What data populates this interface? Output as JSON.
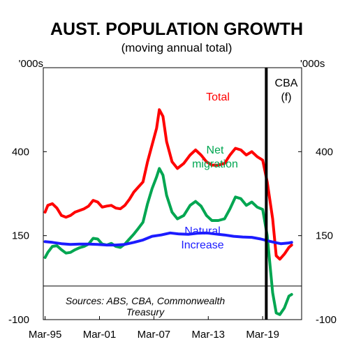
{
  "chart_data": {
    "type": "line",
    "title": "AUST. POPULATION GROWTH",
    "subtitle": "(moving annual total)",
    "y_unit_left": "'000s",
    "y_unit_right": "'000s",
    "ylim": [
      -100,
      650
    ],
    "yticks": [
      -100,
      150,
      400
    ],
    "xlim": [
      1995.0,
      2023.5
    ],
    "x_tick_labels": [
      "Mar-95",
      "Mar-01",
      "Mar-07",
      "Mar-13",
      "Mar-19"
    ],
    "x_tick_values": [
      1995.2,
      2001.2,
      2007.2,
      2013.2,
      2019.2
    ],
    "forecast_divider_x": 2019.6,
    "forecast_label": [
      "CBA",
      "(f)"
    ],
    "zero_line": 0,
    "grid": false,
    "note": [
      "Sources: ABS, CBA, Commonwealth",
      "Treasury"
    ],
    "series": [
      {
        "name": "Total",
        "label_lines": [
          "Total"
        ],
        "color": "#ff0000",
        "points": [
          [
            1995.2,
            220
          ],
          [
            1995.5,
            240
          ],
          [
            1996.0,
            245
          ],
          [
            1996.5,
            232
          ],
          [
            1997.0,
            210
          ],
          [
            1997.5,
            205
          ],
          [
            1998.0,
            210
          ],
          [
            1998.5,
            220
          ],
          [
            1999.0,
            225
          ],
          [
            1999.5,
            230
          ],
          [
            2000.0,
            238
          ],
          [
            2000.5,
            255
          ],
          [
            2001.0,
            250
          ],
          [
            2001.5,
            235
          ],
          [
            2002.0,
            238
          ],
          [
            2002.5,
            240
          ],
          [
            2003.0,
            232
          ],
          [
            2003.5,
            230
          ],
          [
            2004.0,
            240
          ],
          [
            2004.5,
            258
          ],
          [
            2005.0,
            280
          ],
          [
            2005.5,
            295
          ],
          [
            2006.0,
            310
          ],
          [
            2006.5,
            370
          ],
          [
            2007.0,
            420
          ],
          [
            2007.5,
            470
          ],
          [
            2007.8,
            525
          ],
          [
            2008.2,
            505
          ],
          [
            2008.6,
            430
          ],
          [
            2009.2,
            370
          ],
          [
            2009.8,
            350
          ],
          [
            2010.5,
            365
          ],
          [
            2011.2,
            390
          ],
          [
            2011.8,
            405
          ],
          [
            2012.4,
            390
          ],
          [
            2013.0,
            370
          ],
          [
            2013.6,
            360
          ],
          [
            2014.3,
            360
          ],
          [
            2015.0,
            365
          ],
          [
            2015.6,
            390
          ],
          [
            2016.2,
            410
          ],
          [
            2016.8,
            405
          ],
          [
            2017.4,
            390
          ],
          [
            2018.0,
            400
          ],
          [
            2018.6,
            385
          ],
          [
            2019.2,
            375
          ],
          [
            2019.7,
            310
          ],
          [
            2020.3,
            200
          ],
          [
            2020.7,
            90
          ],
          [
            2021.1,
            80
          ],
          [
            2021.6,
            95
          ],
          [
            2022.1,
            115
          ],
          [
            2022.4,
            122
          ]
        ]
      },
      {
        "name": "Net migration",
        "label_lines": [
          "Net",
          "migration"
        ],
        "color": "#00a651",
        "points": [
          [
            1995.2,
            85
          ],
          [
            1995.5,
            100
          ],
          [
            1996.0,
            118
          ],
          [
            1996.5,
            120
          ],
          [
            1997.0,
            108
          ],
          [
            1997.5,
            98
          ],
          [
            1998.0,
            100
          ],
          [
            1998.5,
            108
          ],
          [
            1999.0,
            114
          ],
          [
            1999.5,
            118
          ],
          [
            2000.0,
            125
          ],
          [
            2000.5,
            142
          ],
          [
            2001.0,
            140
          ],
          [
            2001.5,
            125
          ],
          [
            2002.0,
            122
          ],
          [
            2002.5,
            127
          ],
          [
            2003.0,
            118
          ],
          [
            2003.5,
            115
          ],
          [
            2004.0,
            125
          ],
          [
            2004.5,
            140
          ],
          [
            2005.0,
            155
          ],
          [
            2005.5,
            172
          ],
          [
            2006.0,
            190
          ],
          [
            2006.5,
            245
          ],
          [
            2007.0,
            290
          ],
          [
            2007.5,
            325
          ],
          [
            2007.8,
            350
          ],
          [
            2008.2,
            330
          ],
          [
            2008.6,
            270
          ],
          [
            2009.2,
            220
          ],
          [
            2009.8,
            200
          ],
          [
            2010.5,
            210
          ],
          [
            2011.2,
            240
          ],
          [
            2011.8,
            252
          ],
          [
            2012.4,
            238
          ],
          [
            2013.0,
            210
          ],
          [
            2013.6,
            195
          ],
          [
            2014.3,
            195
          ],
          [
            2015.0,
            200
          ],
          [
            2015.6,
            230
          ],
          [
            2016.2,
            265
          ],
          [
            2016.8,
            260
          ],
          [
            2017.4,
            240
          ],
          [
            2018.0,
            250
          ],
          [
            2018.6,
            235
          ],
          [
            2019.2,
            228
          ],
          [
            2019.7,
            150
          ],
          [
            2020.3,
            -20
          ],
          [
            2020.7,
            -80
          ],
          [
            2021.1,
            -85
          ],
          [
            2021.6,
            -65
          ],
          [
            2022.1,
            -30
          ],
          [
            2022.4,
            -25
          ]
        ]
      },
      {
        "name": "Natural Increase",
        "label_lines": [
          "Natural",
          "Increase"
        ],
        "color": "#1c1cff",
        "points": [
          [
            1995.2,
            132
          ],
          [
            1996.0,
            130
          ],
          [
            1997.0,
            126
          ],
          [
            1998.0,
            124
          ],
          [
            1999.0,
            125
          ],
          [
            2000.0,
            125
          ],
          [
            2001.0,
            124
          ],
          [
            2002.0,
            122
          ],
          [
            2003.0,
            122
          ],
          [
            2004.0,
            124
          ],
          [
            2005.0,
            130
          ],
          [
            2006.0,
            137
          ],
          [
            2007.0,
            148
          ],
          [
            2008.0,
            152
          ],
          [
            2009.0,
            158
          ],
          [
            2010.0,
            155
          ],
          [
            2011.0,
            154
          ],
          [
            2012.0,
            157
          ],
          [
            2013.0,
            158
          ],
          [
            2014.0,
            155
          ],
          [
            2015.0,
            152
          ],
          [
            2016.0,
            148
          ],
          [
            2017.0,
            146
          ],
          [
            2018.0,
            145
          ],
          [
            2019.0,
            140
          ],
          [
            2019.7,
            135
          ],
          [
            2020.5,
            130
          ],
          [
            2021.2,
            126
          ],
          [
            2022.0,
            128
          ],
          [
            2022.4,
            130
          ]
        ]
      }
    ]
  }
}
